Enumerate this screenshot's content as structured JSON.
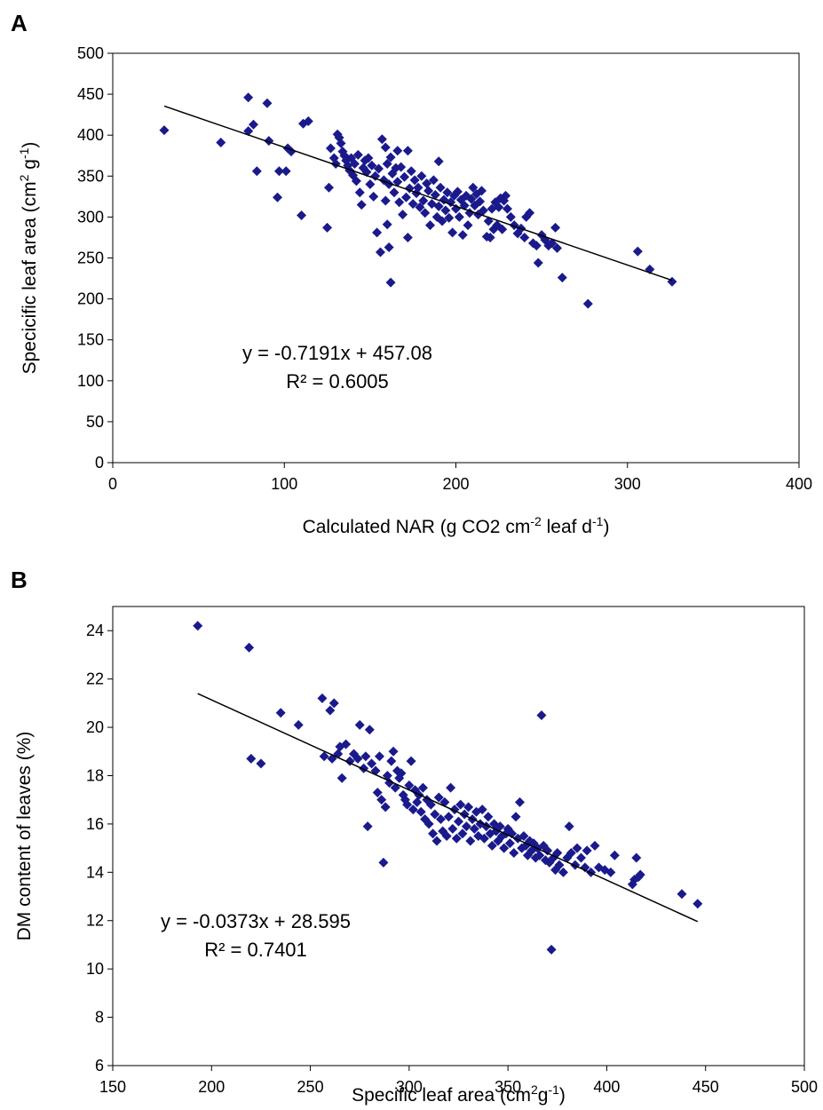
{
  "chart_data": [
    {
      "type": "scatter",
      "panel": "A",
      "xlabel": {
        "pre": "Calculated NAR (g CO2 cm",
        "sup1": "-2",
        "mid": " leaf d",
        "sup2": "-1",
        "post": ")"
      },
      "ylabel": {
        "pre": "Specicific leaf area (cm",
        "sup1": "2",
        "mid": " g",
        "sup2": "-1",
        "post": ")"
      },
      "xlim": [
        0,
        400
      ],
      "ylim": [
        0,
        500
      ],
      "xticks": [
        0,
        100,
        200,
        300,
        400
      ],
      "yticks": [
        0,
        50,
        100,
        150,
        200,
        250,
        300,
        350,
        400,
        450,
        500
      ],
      "marker_color": "#1a1a8c",
      "trendline": {
        "slope": -0.7191,
        "intercept": 457.08,
        "x_range": [
          30,
          326
        ]
      },
      "equation": "y = -0.7191x + 457.08",
      "r2": "R² = 0.6005",
      "points": [
        [
          30,
          406
        ],
        [
          63,
          391
        ],
        [
          79,
          446
        ],
        [
          79,
          405
        ],
        [
          82,
          413
        ],
        [
          84,
          356
        ],
        [
          90,
          439
        ],
        [
          91,
          393
        ],
        [
          96,
          324
        ],
        [
          97,
          356
        ],
        [
          101,
          356
        ],
        [
          102,
          384
        ],
        [
          104,
          380
        ],
        [
          110,
          302
        ],
        [
          111,
          414
        ],
        [
          114,
          417
        ],
        [
          125,
          287
        ],
        [
          126,
          336
        ],
        [
          127,
          384
        ],
        [
          129,
          372
        ],
        [
          130,
          365
        ],
        [
          131,
          401
        ],
        [
          132,
          397
        ],
        [
          133,
          390
        ],
        [
          134,
          380
        ],
        [
          135,
          375
        ],
        [
          136,
          369
        ],
        [
          137,
          363
        ],
        [
          138,
          357
        ],
        [
          139,
          372
        ],
        [
          140,
          351
        ],
        [
          141,
          365
        ],
        [
          142,
          344
        ],
        [
          143,
          376
        ],
        [
          144,
          330
        ],
        [
          145,
          315
        ],
        [
          146,
          360
        ],
        [
          147,
          369
        ],
        [
          148,
          355
        ],
        [
          149,
          372
        ],
        [
          150,
          340
        ],
        [
          151,
          363
        ],
        [
          152,
          325
        ],
        [
          153,
          350
        ],
        [
          154,
          281
        ],
        [
          155,
          359
        ],
        [
          156,
          257
        ],
        [
          157,
          395
        ],
        [
          158,
          345
        ],
        [
          159,
          320
        ],
        [
          159,
          385
        ],
        [
          160,
          291
        ],
        [
          160,
          365
        ],
        [
          161,
          263
        ],
        [
          161,
          340
        ],
        [
          162,
          220
        ],
        [
          162,
          373
        ],
        [
          163,
          353
        ],
        [
          164,
          330
        ],
        [
          165,
          360
        ],
        [
          166,
          381
        ],
        [
          166,
          343
        ],
        [
          167,
          318
        ],
        [
          168,
          361
        ],
        [
          169,
          303
        ],
        [
          170,
          349
        ],
        [
          171,
          324
        ],
        [
          172,
          275
        ],
        [
          172,
          381
        ],
        [
          173,
          335
        ],
        [
          174,
          356
        ],
        [
          175,
          316
        ],
        [
          176,
          345
        ],
        [
          177,
          329
        ],
        [
          178,
          336
        ],
        [
          179,
          312
        ],
        [
          180,
          350
        ],
        [
          181,
          320
        ],
        [
          182,
          305
        ],
        [
          183,
          341
        ],
        [
          184,
          332
        ],
        [
          185,
          290
        ],
        [
          186,
          316
        ],
        [
          187,
          345
        ],
        [
          188,
          327
        ],
        [
          189,
          300
        ],
        [
          190,
          368
        ],
        [
          190,
          313
        ],
        [
          191,
          336
        ],
        [
          192,
          295
        ],
        [
          193,
          321
        ],
        [
          194,
          308
        ],
        [
          195,
          330
        ],
        [
          196,
          299
        ],
        [
          197,
          318
        ],
        [
          198,
          281
        ],
        [
          199,
          326
        ],
        [
          200,
          310
        ],
        [
          201,
          331
        ],
        [
          202,
          300
        ],
        [
          203,
          321
        ],
        [
          204,
          278
        ],
        [
          205,
          314
        ],
        [
          206,
          326
        ],
        [
          207,
          290
        ],
        [
          208,
          305
        ],
        [
          209,
          322
        ],
        [
          210,
          336
        ],
        [
          211,
          314
        ],
        [
          212,
          328
        ],
        [
          213,
          303
        ],
        [
          214,
          319
        ],
        [
          215,
          332
        ],
        [
          216,
          308
        ],
        [
          218,
          276
        ],
        [
          219,
          295
        ],
        [
          220,
          275
        ],
        [
          221,
          310
        ],
        [
          222,
          285
        ],
        [
          223,
          318
        ],
        [
          224,
          290
        ],
        [
          225,
          312
        ],
        [
          226,
          323
        ],
        [
          227,
          285
        ],
        [
          228,
          320
        ],
        [
          229,
          326
        ],
        [
          230,
          310
        ],
        [
          232,
          300
        ],
        [
          234,
          290
        ],
        [
          236,
          280
        ],
        [
          238,
          286
        ],
        [
          240,
          275
        ],
        [
          241,
          300
        ],
        [
          243,
          305
        ],
        [
          245,
          268
        ],
        [
          247,
          265
        ],
        [
          248,
          244
        ],
        [
          250,
          278
        ],
        [
          252,
          272
        ],
        [
          254,
          265
        ],
        [
          256,
          268
        ],
        [
          258,
          287
        ],
        [
          259,
          262
        ],
        [
          262,
          226
        ],
        [
          277,
          194
        ],
        [
          306,
          258
        ],
        [
          313,
          236
        ],
        [
          326,
          221
        ]
      ]
    },
    {
      "type": "scatter",
      "panel": "B",
      "xlabel": {
        "pre": "Specific leaf area (cm",
        "sup1": "2",
        "mid": "g",
        "sup2": "-1",
        "post": ")"
      },
      "ylabel": {
        "pre": "DM content of leaves (%)",
        "sup1": "",
        "mid": "",
        "sup2": "",
        "post": ""
      },
      "xlim": [
        150,
        500
      ],
      "ylim": [
        6,
        25
      ],
      "xticks": [
        150,
        200,
        250,
        300,
        350,
        400,
        450,
        500
      ],
      "yticks": [
        6,
        8,
        10,
        12,
        14,
        16,
        18,
        20,
        22,
        24
      ],
      "marker_color": "#1a1a8c",
      "trendline": {
        "slope": -0.0373,
        "intercept": 28.595,
        "x_range": [
          193,
          446
        ]
      },
      "equation": "y = -0.0373x + 28.595",
      "r2": "R² = 0.7401",
      "points": [
        [
          193,
          24.2
        ],
        [
          219,
          23.3
        ],
        [
          220,
          18.7
        ],
        [
          225,
          18.5
        ],
        [
          235,
          20.6
        ],
        [
          244,
          20.1
        ],
        [
          256,
          21.2
        ],
        [
          257,
          18.8
        ],
        [
          260,
          20.7
        ],
        [
          261,
          18.7
        ],
        [
          262,
          21.0
        ],
        [
          264,
          18.9
        ],
        [
          265,
          19.2
        ],
        [
          266,
          17.9
        ],
        [
          268,
          19.3
        ],
        [
          270,
          18.6
        ],
        [
          272,
          18.9
        ],
        [
          274,
          18.7
        ],
        [
          275,
          20.1
        ],
        [
          277,
          18.3
        ],
        [
          278,
          18.8
        ],
        [
          279,
          15.9
        ],
        [
          280,
          19.9
        ],
        [
          281,
          18.5
        ],
        [
          283,
          18.2
        ],
        [
          284,
          17.3
        ],
        [
          285,
          18.8
        ],
        [
          286,
          17.0
        ],
        [
          287,
          14.4
        ],
        [
          288,
          16.7
        ],
        [
          289,
          18.0
        ],
        [
          290,
          17.7
        ],
        [
          291,
          18.6
        ],
        [
          292,
          19.0
        ],
        [
          293,
          17.5
        ],
        [
          294,
          18.2
        ],
        [
          295,
          17.9
        ],
        [
          296,
          18.1
        ],
        [
          297,
          17.2
        ],
        [
          298,
          17.0
        ],
        [
          299,
          16.8
        ],
        [
          300,
          17.6
        ],
        [
          301,
          18.6
        ],
        [
          302,
          16.6
        ],
        [
          303,
          17.4
        ],
        [
          304,
          16.9
        ],
        [
          305,
          17.2
        ],
        [
          306,
          16.5
        ],
        [
          307,
          17.5
        ],
        [
          308,
          16.2
        ],
        [
          309,
          17.0
        ],
        [
          310,
          16.0
        ],
        [
          311,
          16.8
        ],
        [
          312,
          15.6
        ],
        [
          313,
          16.4
        ],
        [
          314,
          15.3
        ],
        [
          315,
          17.1
        ],
        [
          316,
          16.2
        ],
        [
          317,
          15.7
        ],
        [
          318,
          16.9
        ],
        [
          319,
          15.5
        ],
        [
          320,
          16.3
        ],
        [
          321,
          17.5
        ],
        [
          322,
          15.8
        ],
        [
          323,
          16.6
        ],
        [
          324,
          15.4
        ],
        [
          325,
          16.1
        ],
        [
          326,
          16.8
        ],
        [
          327,
          15.6
        ],
        [
          328,
          16.4
        ],
        [
          329,
          15.9
        ],
        [
          330,
          16.7
        ],
        [
          331,
          15.3
        ],
        [
          332,
          16.2
        ],
        [
          333,
          15.8
        ],
        [
          334,
          16.5
        ],
        [
          335,
          15.5
        ],
        [
          336,
          16.0
        ],
        [
          337,
          16.6
        ],
        [
          338,
          15.4
        ],
        [
          339,
          15.9
        ],
        [
          340,
          16.3
        ],
        [
          341,
          15.6
        ],
        [
          342,
          15.1
        ],
        [
          343,
          16.0
        ],
        [
          344,
          15.7
        ],
        [
          345,
          15.3
        ],
        [
          346,
          15.9
        ],
        [
          347,
          15.5
        ],
        [
          348,
          15.0
        ],
        [
          349,
          15.6
        ],
        [
          350,
          15.8
        ],
        [
          351,
          15.2
        ],
        [
          352,
          15.6
        ],
        [
          353,
          14.8
        ],
        [
          354,
          16.3
        ],
        [
          355,
          15.4
        ],
        [
          356,
          16.9
        ],
        [
          357,
          15.0
        ],
        [
          358,
          15.5
        ],
        [
          359,
          15.1
        ],
        [
          360,
          14.7
        ],
        [
          361,
          15.3
        ],
        [
          362,
          14.9
        ],
        [
          363,
          15.2
        ],
        [
          364,
          14.6
        ],
        [
          365,
          15.0
        ],
        [
          366,
          14.7
        ],
        [
          367,
          20.5
        ],
        [
          368,
          15.1
        ],
        [
          369,
          14.5
        ],
        [
          370,
          14.9
        ],
        [
          371,
          14.4
        ],
        [
          372,
          10.8
        ],
        [
          373,
          14.6
        ],
        [
          374,
          14.1
        ],
        [
          375,
          14.8
        ],
        [
          376,
          14.3
        ],
        [
          378,
          14.0
        ],
        [
          380,
          14.6
        ],
        [
          381,
          15.9
        ],
        [
          382,
          14.8
        ],
        [
          384,
          14.3
        ],
        [
          385,
          15.0
        ],
        [
          387,
          14.6
        ],
        [
          389,
          14.2
        ],
        [
          390,
          14.9
        ],
        [
          392,
          14.0
        ],
        [
          394,
          15.1
        ],
        [
          396,
          14.2
        ],
        [
          399,
          14.1
        ],
        [
          402,
          14.0
        ],
        [
          404,
          14.7
        ],
        [
          413,
          13.5
        ],
        [
          414,
          13.7
        ],
        [
          415,
          14.6
        ],
        [
          416,
          13.8
        ],
        [
          417,
          13.9
        ],
        [
          438,
          13.1
        ],
        [
          446,
          12.7
        ]
      ]
    }
  ]
}
